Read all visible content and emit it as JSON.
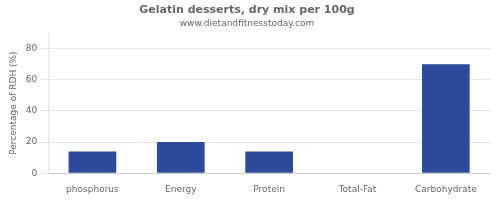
{
  "chart_data": {
    "type": "bar",
    "title": "Gelatin desserts, dry mix per 100g",
    "subtitle": "www.dietandfitnesstoday.com",
    "categories": [
      "phosphorus",
      "Energy",
      "Protein",
      "Total-Fat",
      "Carbohydrate"
    ],
    "values": [
      14,
      20,
      14,
      0,
      70
    ],
    "color": "#2d4a9a",
    "ylabel": "Percentage of RDH (%)",
    "ylim": [
      0,
      90
    ],
    "yticks": [
      0,
      20,
      40,
      60,
      80
    ],
    "grid": true
  }
}
